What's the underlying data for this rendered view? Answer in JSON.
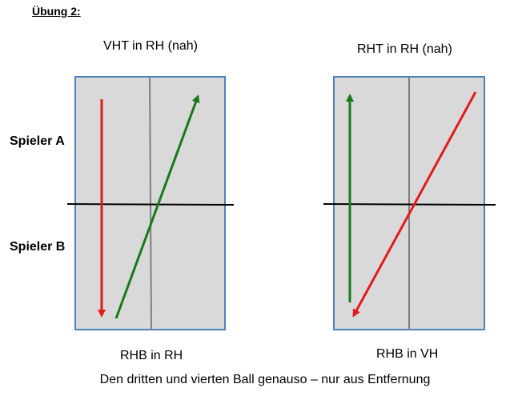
{
  "heading": "Übung 2:",
  "left_table": {
    "top_label": "VHT in RH (nah)",
    "bottom_label": "RHB in RH"
  },
  "right_table": {
    "top_label": "RHT in RH (nah)",
    "bottom_label": "RHB in VH"
  },
  "player_a": "Spieler A",
  "player_b": "Spieler B",
  "footer": "Den dritten und vierten Ball genauso – nur aus Entfernung",
  "colors": {
    "table_fill": "#d9d9d9",
    "table_border": "#4f81bd",
    "center_line": "#7f7f7f",
    "net": "#000000",
    "red_arrow": "#e31a1a",
    "green_arrow": "#1a7a1a"
  }
}
